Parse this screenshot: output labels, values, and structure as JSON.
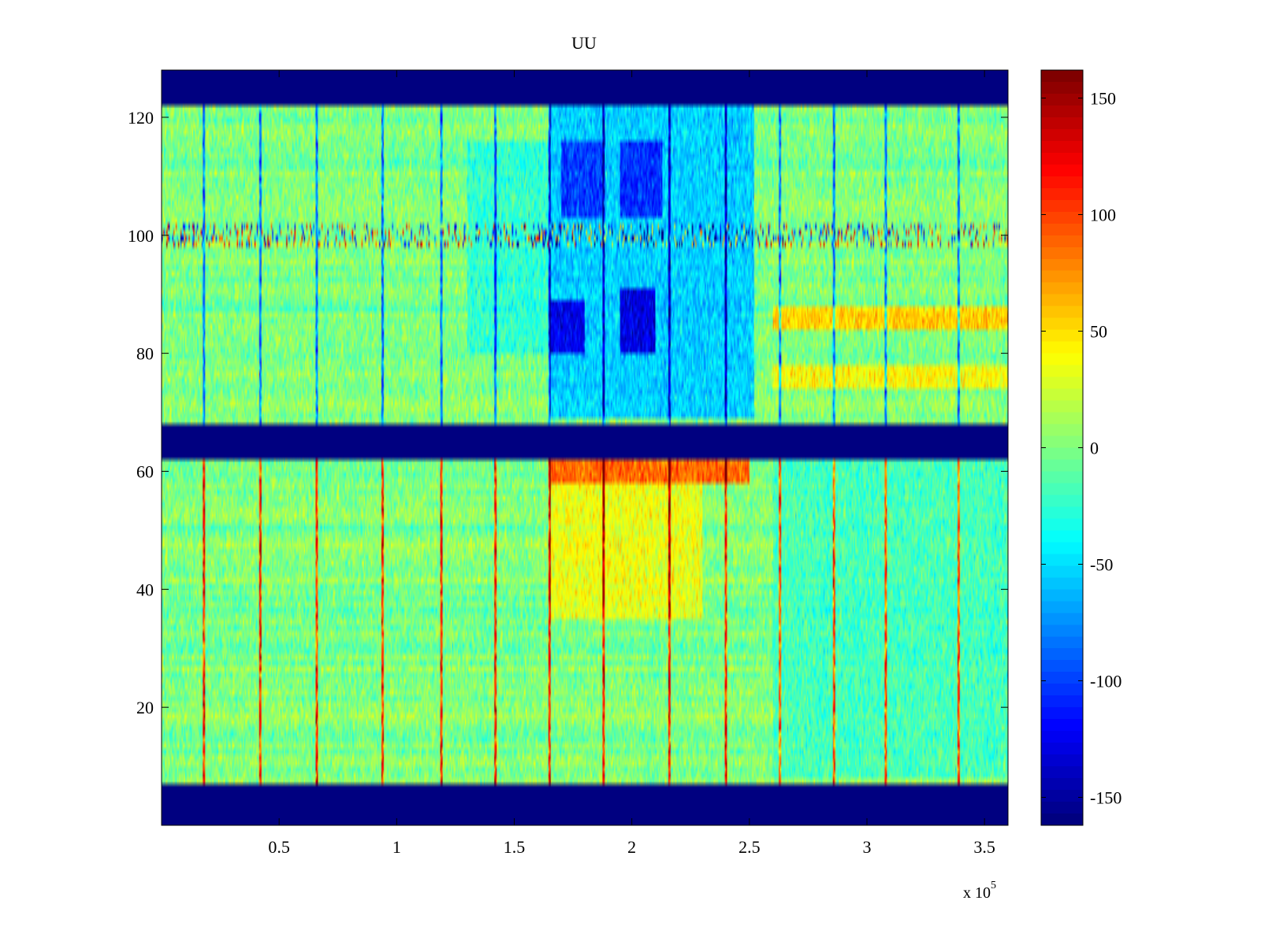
{
  "chart_data": {
    "type": "heatmap",
    "title": "UU",
    "xlabel": "",
    "ylabel": "",
    "x_range": [
      0,
      360000
    ],
    "y_range": [
      0,
      128
    ],
    "x_ticks": [
      {
        "value": 50000,
        "label": "0.5"
      },
      {
        "value": 100000,
        "label": "1"
      },
      {
        "value": 150000,
        "label": "1.5"
      },
      {
        "value": 200000,
        "label": "2"
      },
      {
        "value": 250000,
        "label": "2.5"
      },
      {
        "value": 300000,
        "label": "3"
      },
      {
        "value": 350000,
        "label": "3.5"
      }
    ],
    "x_exponent_label": "x 10",
    "x_exponent": "5",
    "y_ticks": [
      {
        "value": 20,
        "label": "20"
      },
      {
        "value": 40,
        "label": "40"
      },
      {
        "value": 60,
        "label": "60"
      },
      {
        "value": 80,
        "label": "80"
      },
      {
        "value": 100,
        "label": "100"
      },
      {
        "value": 120,
        "label": "120"
      }
    ],
    "colormap": "jet",
    "colorbar": {
      "range": [
        -162,
        162
      ],
      "ticks": [
        {
          "value": 150,
          "label": "150"
        },
        {
          "value": 100,
          "label": "100"
        },
        {
          "value": 50,
          "label": "50"
        },
        {
          "value": 0,
          "label": "0"
        },
        {
          "value": -50,
          "label": "-50"
        },
        {
          "value": -100,
          "label": "-100"
        },
        {
          "value": -150,
          "label": "-150"
        }
      ]
    },
    "masked_value": -162,
    "masked_rows": [
      [
        0,
        7
      ],
      [
        62,
        68
      ],
      [
        122,
        128
      ]
    ],
    "data_rows": [
      [
        8,
        61
      ],
      [
        69,
        121
      ]
    ],
    "baseline_value": 0,
    "regions": [
      {
        "x": [
          165000,
          252000
        ],
        "y": [
          69,
          121
        ],
        "value": -55
      },
      {
        "x": [
          165000,
          180000
        ],
        "y": [
          80,
          88
        ],
        "value": -110
      },
      {
        "x": [
          195000,
          210000
        ],
        "y": [
          80,
          90
        ],
        "value": -115
      },
      {
        "x": [
          170000,
          188000
        ],
        "y": [
          103,
          115
        ],
        "value": -85
      },
      {
        "x": [
          195000,
          213000
        ],
        "y": [
          103,
          115
        ],
        "value": -90
      },
      {
        "x": [
          130000,
          165000
        ],
        "y": [
          80,
          115
        ],
        "value": -25
      },
      {
        "x": [
          165000,
          250000
        ],
        "y": [
          58,
          61
        ],
        "value": 90
      },
      {
        "x": [
          165000,
          230000
        ],
        "y": [
          35,
          57
        ],
        "value": 35
      },
      {
        "x": [
          260000,
          360000
        ],
        "y": [
          84,
          87
        ],
        "value": 55
      },
      {
        "x": [
          260000,
          360000
        ],
        "y": [
          74,
          77
        ],
        "value": 40
      },
      {
        "x": [
          260000,
          360000
        ],
        "y": [
          8,
          61
        ],
        "value": -18
      }
    ],
    "spike_columns_x": [
      18000,
      42000,
      66000,
      94000,
      119000,
      142000,
      165000,
      188000,
      216000,
      240000,
      263000,
      286000,
      308000,
      339000
    ],
    "stripe_row": {
      "y": [
        98,
        101
      ],
      "value": 0
    }
  }
}
